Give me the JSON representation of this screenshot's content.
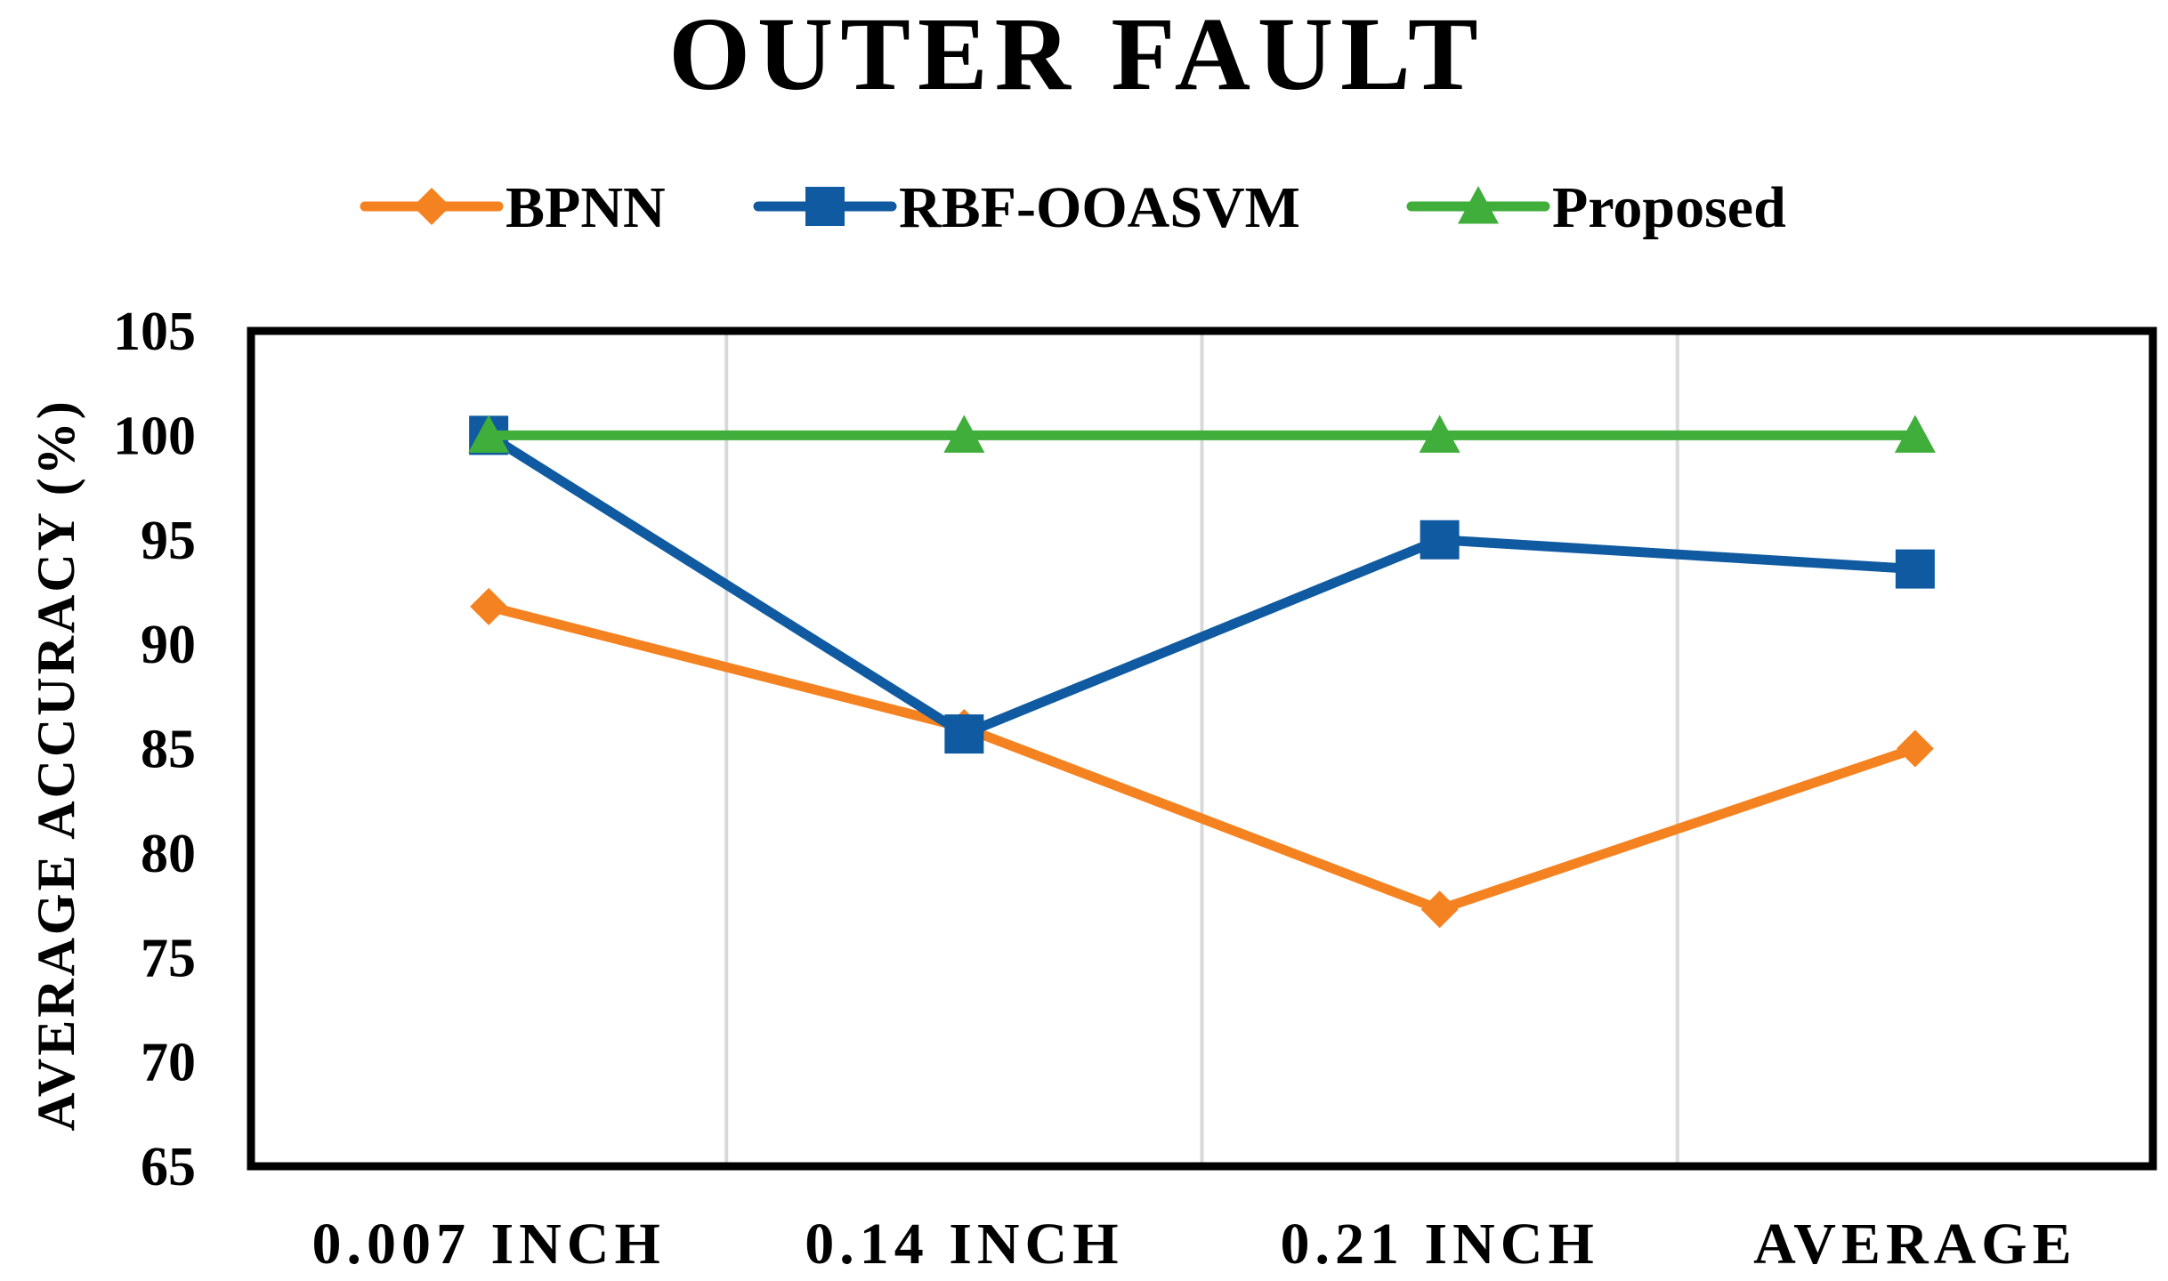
{
  "chart_data": {
    "type": "line",
    "title": "OUTER FAULT",
    "xlabel": "",
    "ylabel": "AVERAGE ACCURACY (%)",
    "categories": [
      "0.007 INCH",
      "0.14 INCH",
      "0.21 INCH",
      "AVERAGE"
    ],
    "ylim": [
      65,
      105
    ],
    "yticks": [
      "105",
      "100",
      "95",
      "90",
      "85",
      "80",
      "75",
      "70",
      "65"
    ],
    "grid": "vertical",
    "legend_position": "top-center",
    "series": [
      {
        "name": "BPNN",
        "color": "#f58220",
        "marker": "diamond",
        "values": [
          91.8,
          86.0,
          77.3,
          85.0
        ]
      },
      {
        "name": "RBF-OOASVM",
        "color": "#0f5aa0",
        "marker": "square",
        "values": [
          100,
          85.7,
          95.0,
          93.6
        ]
      },
      {
        "name": "Proposed",
        "color": "#3fae3a",
        "marker": "triangle",
        "values": [
          100,
          100,
          100,
          100
        ]
      }
    ]
  }
}
